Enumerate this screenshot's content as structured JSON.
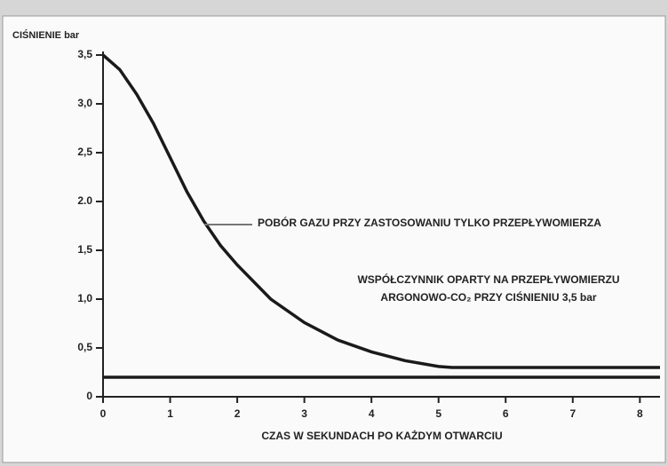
{
  "chart_data": {
    "type": "line",
    "ylabel": "CIŚNIENIE bar",
    "xlabel": "CZAS W SEKUNDACH PO KAŻDYM OTWARCIU",
    "annotations": [
      "POBÓR GAZU PRZY ZASTOSOWANIU TYLKO PRZEPŁYWOMIERZA",
      "WSPÓŁCZYNNIK OPARTY NA PRZEPŁYWOMIERZU",
      "ARGONOWO-CO₂ PRZY CIŚNIENIU 3,5 bar"
    ],
    "series": [
      {
        "color": "#1a1a1a",
        "x": [
          0,
          0.25,
          0.5,
          0.75,
          1,
          1.25,
          1.5,
          1.75,
          2,
          2.5,
          3,
          3.5,
          4,
          4.5,
          5,
          5.2,
          6,
          7,
          8,
          8.3
        ],
        "values": [
          3.5,
          3.35,
          3.1,
          2.8,
          2.45,
          2.1,
          1.8,
          1.55,
          1.35,
          1.0,
          0.76,
          0.58,
          0.46,
          0.37,
          0.31,
          0.3,
          0.3,
          0.3,
          0.3,
          0.3
        ]
      },
      {
        "color": "#1a1a1a",
        "x": [
          0,
          8.3
        ],
        "values": [
          0.2,
          0.2
        ]
      }
    ],
    "xlim": [
      0,
      8.3
    ],
    "xticks": [
      0,
      1,
      2,
      3,
      4,
      5,
      6,
      7,
      8
    ],
    "ylim": [
      0,
      3.5
    ],
    "yticks": [
      0,
      {
        "value": 0.5,
        "label": "0,5"
      },
      {
        "value": 1,
        "label": "1,0"
      },
      {
        "value": 1.5,
        "label": "1,5"
      },
      {
        "value": 2,
        "label": "2.0"
      },
      {
        "value": 2.5,
        "label": "2,5"
      },
      {
        "value": 3,
        "label": "3,0"
      },
      {
        "value": 3.5,
        "label": "3,5"
      }
    ],
    "grid": false
  }
}
